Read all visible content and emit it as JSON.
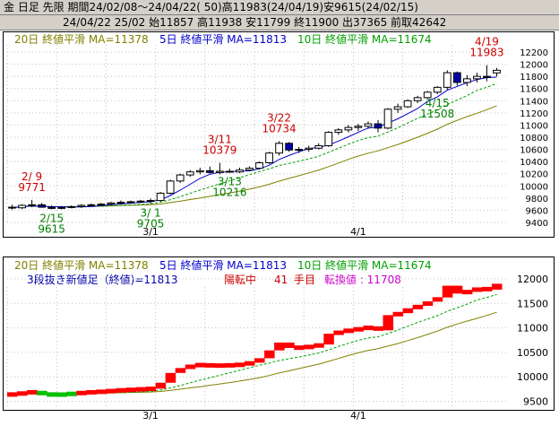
{
  "header": {
    "line1": "金 日足 先限 期間24/02/08～24/04/22( 50)高11983(24/04/19)安9615(24/02/15)",
    "line2": "24/04/22 25/02 始11857 高11938 安11799 終11900 出37365 前取42642"
  },
  "legend": {
    "ma20": "20日 終値平滑 MA=11378",
    "ma5": "5日 終値平滑 MA=11813",
    "ma10": "10日 終値平滑 MA=11674"
  },
  "colors": {
    "ma20": "#808000",
    "ma5": "#0000cc",
    "ma10": "#00a000",
    "up": "#ffffff",
    "down": "#0000aa",
    "brick_up": "#ff0000",
    "brick_down": "#00c000",
    "annot": "#cc0000",
    "annot_low": "#008000",
    "grid": "#c0c0c0"
  },
  "chart_data": [
    {
      "type": "candlestick",
      "ylim": [
        9400,
        12200
      ],
      "yticks": [
        9400,
        9600,
        9800,
        10000,
        10200,
        10400,
        10600,
        10800,
        11000,
        11200,
        11400,
        11600,
        11800,
        12000,
        12200
      ],
      "xtick_labels": [
        {
          "index": 14,
          "label": "3/1"
        },
        {
          "index": 35,
          "label": "4/1"
        }
      ],
      "candles": [
        {
          "o": 9650,
          "h": 9690,
          "l": 9610,
          "c": 9640
        },
        {
          "o": 9640,
          "h": 9700,
          "l": 9620,
          "c": 9680
        },
        {
          "o": 9680,
          "h": 9771,
          "l": 9650,
          "c": 9690
        },
        {
          "o": 9690,
          "h": 9720,
          "l": 9640,
          "c": 9650
        },
        {
          "o": 9650,
          "h": 9680,
          "l": 9615,
          "c": 9630
        },
        {
          "o": 9630,
          "h": 9660,
          "l": 9615,
          "c": 9645
        },
        {
          "o": 9645,
          "h": 9680,
          "l": 9630,
          "c": 9660
        },
        {
          "o": 9660,
          "h": 9700,
          "l": 9640,
          "c": 9680
        },
        {
          "o": 9680,
          "h": 9710,
          "l": 9660,
          "c": 9690
        },
        {
          "o": 9690,
          "h": 9720,
          "l": 9670,
          "c": 9700
        },
        {
          "o": 9700,
          "h": 9740,
          "l": 9680,
          "c": 9720
        },
        {
          "o": 9720,
          "h": 9760,
          "l": 9700,
          "c": 9730
        },
        {
          "o": 9730,
          "h": 9760,
          "l": 9710,
          "c": 9740
        },
        {
          "o": 9740,
          "h": 9770,
          "l": 9720,
          "c": 9750
        },
        {
          "o": 9750,
          "h": 9790,
          "l": 9705,
          "c": 9760
        },
        {
          "o": 9760,
          "h": 9900,
          "l": 9740,
          "c": 9880
        },
        {
          "o": 9880,
          "h": 10100,
          "l": 9860,
          "c": 10080
        },
        {
          "o": 10080,
          "h": 10200,
          "l": 10050,
          "c": 10180
        },
        {
          "o": 10180,
          "h": 10260,
          "l": 10150,
          "c": 10230
        },
        {
          "o": 10230,
          "h": 10300,
          "l": 10190,
          "c": 10250
        },
        {
          "o": 10250,
          "h": 10320,
          "l": 10200,
          "c": 10220
        },
        {
          "o": 10220,
          "h": 10379,
          "l": 10190,
          "c": 10240
        },
        {
          "o": 10240,
          "h": 10280,
          "l": 10216,
          "c": 10230
        },
        {
          "o": 10230,
          "h": 10300,
          "l": 10210,
          "c": 10260
        },
        {
          "o": 10260,
          "h": 10320,
          "l": 10240,
          "c": 10290
        },
        {
          "o": 10290,
          "h": 10400,
          "l": 10270,
          "c": 10380
        },
        {
          "o": 10380,
          "h": 10560,
          "l": 10360,
          "c": 10540
        },
        {
          "o": 10540,
          "h": 10734,
          "l": 10500,
          "c": 10700
        },
        {
          "o": 10700,
          "h": 10720,
          "l": 10560,
          "c": 10590
        },
        {
          "o": 10590,
          "h": 10640,
          "l": 10540,
          "c": 10600
        },
        {
          "o": 10600,
          "h": 10660,
          "l": 10560,
          "c": 10620
        },
        {
          "o": 10620,
          "h": 10700,
          "l": 10600,
          "c": 10660
        },
        {
          "o": 10660,
          "h": 10900,
          "l": 10640,
          "c": 10880
        },
        {
          "o": 10880,
          "h": 10950,
          "l": 10840,
          "c": 10920
        },
        {
          "o": 10920,
          "h": 11000,
          "l": 10880,
          "c": 10960
        },
        {
          "o": 10960,
          "h": 11020,
          "l": 10900,
          "c": 10980
        },
        {
          "o": 10980,
          "h": 11060,
          "l": 10940,
          "c": 11020
        },
        {
          "o": 11020,
          "h": 11080,
          "l": 10880,
          "c": 10950
        },
        {
          "o": 10950,
          "h": 11280,
          "l": 10930,
          "c": 11260
        },
        {
          "o": 11260,
          "h": 11350,
          "l": 11200,
          "c": 11300
        },
        {
          "o": 11300,
          "h": 11420,
          "l": 11280,
          "c": 11400
        },
        {
          "o": 11400,
          "h": 11480,
          "l": 11360,
          "c": 11450
        },
        {
          "o": 11450,
          "h": 11560,
          "l": 11420,
          "c": 11540
        },
        {
          "o": 11540,
          "h": 11640,
          "l": 11508,
          "c": 11620
        },
        {
          "o": 11620,
          "h": 11900,
          "l": 11580,
          "c": 11860
        },
        {
          "o": 11860,
          "h": 11880,
          "l": 11650,
          "c": 11700
        },
        {
          "o": 11700,
          "h": 11820,
          "l": 11640,
          "c": 11760
        },
        {
          "o": 11760,
          "h": 11860,
          "l": 11700,
          "c": 11800
        },
        {
          "o": 11800,
          "h": 11983,
          "l": 11720,
          "c": 11780
        },
        {
          "o": 11857,
          "h": 11938,
          "l": 11799,
          "c": 11900
        }
      ],
      "annotations": [
        {
          "index": 2,
          "date": "2/ 9",
          "value": "9771",
          "kind": "high"
        },
        {
          "index": 4,
          "date": "2/15",
          "value": "9615",
          "kind": "low"
        },
        {
          "index": 14,
          "date": "3/ 1",
          "value": "9705",
          "kind": "low"
        },
        {
          "index": 21,
          "date": "3/11",
          "value": "10379",
          "kind": "high"
        },
        {
          "index": 22,
          "date": "3/13",
          "value": "10216",
          "kind": "low"
        },
        {
          "index": 27,
          "date": "3/22",
          "value": "10734",
          "kind": "high"
        },
        {
          "index": 43,
          "date": "4/15",
          "value": "11508",
          "kind": "low"
        },
        {
          "index": 48,
          "date": "4/19",
          "value": "11983",
          "kind": "high"
        }
      ]
    },
    {
      "type": "three-line-break",
      "title": "3段抜き新値足（終値)=11813",
      "status": "陽転中",
      "count": "41",
      "count_unit": "手目",
      "reversal_label": "転換値 : 11708",
      "ylim": [
        9400,
        12200
      ],
      "yticks": [
        9500,
        10000,
        10500,
        11000,
        11500,
        12000
      ],
      "xtick_labels": [
        {
          "index": 14,
          "label": "3/1"
        },
        {
          "index": 35,
          "label": "4/1"
        }
      ]
    }
  ]
}
